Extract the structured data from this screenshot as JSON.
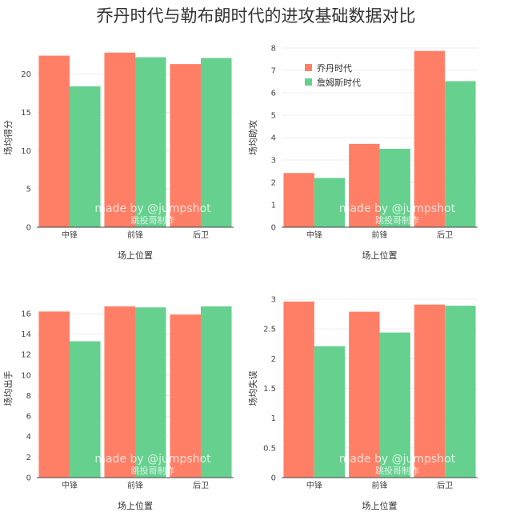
{
  "figure": {
    "title": "乔丹时代与勒布朗时代的进攻基础数据对比",
    "watermark_line1": "made by @jumpshot",
    "watermark_line2": "跳投哥制作"
  },
  "colors": {
    "jordan": "#FF7F66",
    "lebron": "#66D18F"
  },
  "legend": {
    "items": [
      {
        "label": "乔丹时代",
        "color": "#FF7F66"
      },
      {
        "label": "詹姆斯时代",
        "color": "#66D18F"
      }
    ]
  },
  "chart_data": [
    {
      "type": "bar",
      "categories": [
        "中锋",
        "前锋",
        "后卫"
      ],
      "series": [
        {
          "name": "乔丹时代",
          "values": [
            22.4,
            22.8,
            21.3
          ]
        },
        {
          "name": "詹姆斯时代",
          "values": [
            18.4,
            22.2,
            22.1
          ]
        }
      ],
      "xlabel": "场上位置",
      "ylabel": "场均得分",
      "ylim": [
        0,
        23.4
      ],
      "yticks": [
        0,
        5,
        10,
        15,
        20
      ]
    },
    {
      "type": "bar",
      "categories": [
        "中锋",
        "前锋",
        "后卫"
      ],
      "series": [
        {
          "name": "乔丹时代",
          "values": [
            2.42,
            3.72,
            7.87
          ]
        },
        {
          "name": "詹姆斯时代",
          "values": [
            2.2,
            3.5,
            6.52
          ]
        }
      ],
      "xlabel": "场上位置",
      "ylabel": "场均助攻",
      "ylim": [
        0,
        8
      ],
      "yticks": [
        0,
        1,
        2,
        3,
        4,
        5,
        6,
        7,
        8
      ]
    },
    {
      "type": "bar",
      "categories": [
        "中锋",
        "前锋",
        "后卫"
      ],
      "series": [
        {
          "name": "乔丹时代",
          "values": [
            16.2,
            16.7,
            15.9
          ]
        },
        {
          "name": "詹姆斯时代",
          "values": [
            13.3,
            16.6,
            16.7
          ]
        }
      ],
      "xlabel": "场上位置",
      "ylabel": "场均出手",
      "ylim": [
        0,
        17.4
      ],
      "yticks": [
        0,
        2,
        4,
        6,
        8,
        10,
        12,
        14,
        16
      ]
    },
    {
      "type": "bar",
      "categories": [
        "中锋",
        "前锋",
        "后卫"
      ],
      "series": [
        {
          "name": "乔丹时代",
          "values": [
            2.96,
            2.79,
            2.91
          ]
        },
        {
          "name": "詹姆斯时代",
          "values": [
            2.21,
            2.44,
            2.89
          ]
        }
      ],
      "xlabel": "场上位置",
      "ylabel": "场均失误",
      "ylim": [
        0,
        3
      ],
      "yticks": [
        0,
        0.5,
        1,
        1.5,
        2,
        2.5,
        3
      ],
      "ytick_labels": [
        "0",
        "0.5",
        "1",
        "1.5",
        "2",
        "2.5",
        "3"
      ]
    }
  ]
}
